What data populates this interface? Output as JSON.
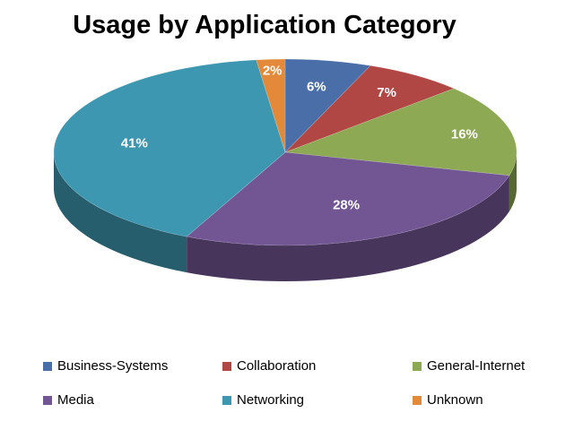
{
  "chart_data": {
    "type": "pie",
    "title": "Usage by Application Category",
    "categories": [
      "Business-Systems",
      "Collaboration",
      "General-Internet",
      "Media",
      "Networking",
      "Unknown"
    ],
    "values": [
      6,
      7,
      16,
      28,
      41,
      2
    ],
    "labels": [
      "6%",
      "7%",
      "16%",
      "28%",
      "41%",
      "2%"
    ],
    "colors": [
      "#4a6fa8",
      "#b14744",
      "#8da953",
      "#725694",
      "#3d97b1",
      "#e38a3a"
    ],
    "legend_position": "bottom",
    "style": "3d"
  }
}
